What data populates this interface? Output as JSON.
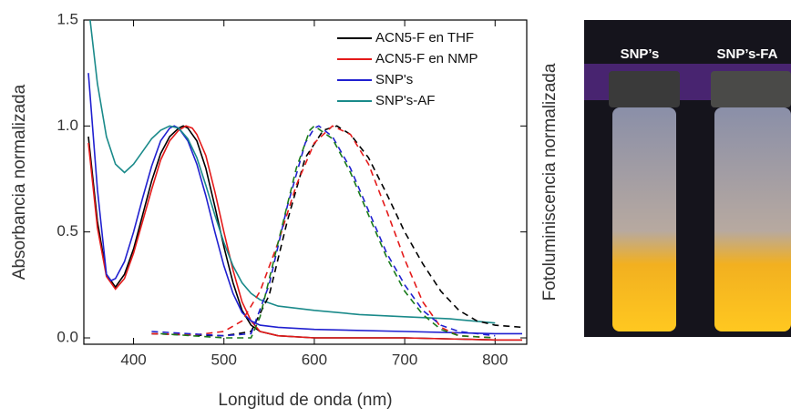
{
  "chart_data": {
    "type": "line",
    "xlabel": "Longitud de onda (nm)",
    "ylabel": "Absorbancia normalizada",
    "y2label": "Fotoluminiscencia normalizada",
    "xlim": [
      345,
      835
    ],
    "xticks": [
      400,
      500,
      600,
      700,
      800
    ],
    "ylim": [
      -0.03,
      1.5
    ],
    "yticks": [
      {
        "value": 0,
        "label": "0.0"
      },
      0.5,
      {
        "value": 1,
        "label": "1.0"
      },
      {
        "value": 1.5,
        "label": "1.5"
      }
    ],
    "legend": "upper right",
    "series": [
      {
        "name": "ACN5-F en THF",
        "color": "#000000",
        "dash": false,
        "x": [
          350,
          360,
          370,
          380,
          390,
          400,
          410,
          420,
          430,
          440,
          450,
          455,
          460,
          470,
          480,
          490,
          500,
          510,
          520,
          530,
          540,
          560,
          600,
          700,
          800,
          830
        ],
        "values": [
          0.95,
          0.55,
          0.3,
          0.24,
          0.3,
          0.42,
          0.58,
          0.74,
          0.87,
          0.95,
          0.99,
          1.0,
          0.99,
          0.93,
          0.8,
          0.62,
          0.43,
          0.26,
          0.13,
          0.06,
          0.03,
          0.01,
          0.0,
          0.0,
          -0.01,
          -0.01
        ]
      },
      {
        "name": "ACN5-F en NMP",
        "color": "#e41a1a",
        "dash": false,
        "x": [
          350,
          360,
          370,
          380,
          390,
          400,
          410,
          420,
          430,
          440,
          450,
          458,
          465,
          470,
          480,
          490,
          500,
          510,
          520,
          530,
          540,
          560,
          600,
          700,
          800,
          830
        ],
        "values": [
          0.92,
          0.52,
          0.29,
          0.23,
          0.28,
          0.4,
          0.55,
          0.7,
          0.84,
          0.93,
          0.98,
          1.0,
          0.99,
          0.96,
          0.86,
          0.69,
          0.5,
          0.32,
          0.17,
          0.08,
          0.03,
          0.01,
          0.0,
          0.0,
          -0.01,
          -0.01
        ]
      },
      {
        "name": "SNP's",
        "color": "#2020d0",
        "dash": false,
        "x": [
          350,
          360,
          370,
          375,
          380,
          390,
          400,
          410,
          420,
          430,
          440,
          445,
          450,
          460,
          470,
          480,
          490,
          500,
          510,
          520,
          530,
          540,
          560,
          600,
          700,
          800,
          830
        ],
        "values": [
          1.25,
          0.7,
          0.3,
          0.27,
          0.28,
          0.36,
          0.5,
          0.66,
          0.81,
          0.93,
          0.99,
          1.0,
          0.99,
          0.93,
          0.82,
          0.67,
          0.5,
          0.34,
          0.21,
          0.12,
          0.08,
          0.06,
          0.05,
          0.04,
          0.03,
          0.02,
          0.02
        ]
      },
      {
        "name": "SNP's-AF",
        "color": "#1a8a8a",
        "dash": false,
        "x": [
          352,
          360,
          370,
          380,
          390,
          400,
          410,
          420,
          430,
          440,
          450,
          460,
          470,
          480,
          490,
          500,
          510,
          520,
          530,
          540,
          560,
          600,
          650,
          700,
          750,
          800
        ],
        "values": [
          1.5,
          1.2,
          0.95,
          0.82,
          0.78,
          0.82,
          0.88,
          0.94,
          0.98,
          1.0,
          0.99,
          0.94,
          0.85,
          0.72,
          0.58,
          0.45,
          0.34,
          0.26,
          0.21,
          0.18,
          0.15,
          0.13,
          0.11,
          0.1,
          0.09,
          0.07
        ]
      },
      {
        "color": "#000000",
        "dash": true,
        "x": [
          420,
          450,
          500,
          530,
          550,
          570,
          590,
          610,
          625,
          640,
          660,
          680,
          700,
          720,
          740,
          760,
          780,
          800,
          830
        ],
        "values": [
          0.02,
          0.015,
          0.01,
          0.03,
          0.2,
          0.55,
          0.85,
          0.98,
          1.0,
          0.96,
          0.85,
          0.68,
          0.5,
          0.35,
          0.22,
          0.13,
          0.08,
          0.06,
          0.05
        ]
      },
      {
        "color": "#e41a1a",
        "dash": true,
        "x": [
          420,
          470,
          500,
          520,
          540,
          560,
          580,
          600,
          620,
          640,
          660,
          680,
          700,
          720,
          740,
          760,
          800
        ],
        "values": [
          0.02,
          0.015,
          0.03,
          0.08,
          0.22,
          0.45,
          0.72,
          0.92,
          1.0,
          0.96,
          0.82,
          0.6,
          0.37,
          0.17,
          0.05,
          0.01,
          0.0
        ]
      },
      {
        "color": "#2020d0",
        "dash": true,
        "x": [
          420,
          500,
          530,
          550,
          570,
          590,
          600,
          605,
          620,
          640,
          660,
          680,
          700,
          720,
          740,
          760,
          800
        ],
        "values": [
          0.03,
          0.01,
          0.02,
          0.25,
          0.62,
          0.92,
          0.99,
          1.0,
          0.95,
          0.8,
          0.6,
          0.4,
          0.25,
          0.13,
          0.06,
          0.03,
          0.01
        ]
      },
      {
        "color": "#1a7a1a",
        "dash": true,
        "x": [
          430,
          500,
          530,
          540,
          560,
          580,
          595,
          600,
          620,
          640,
          660,
          680,
          700,
          720,
          740,
          760,
          800
        ],
        "values": [
          0.02,
          0.0,
          0.0,
          0.1,
          0.45,
          0.8,
          0.98,
          1.0,
          0.94,
          0.78,
          0.58,
          0.38,
          0.22,
          0.11,
          0.04,
          0.01,
          0.0
        ]
      }
    ]
  },
  "photo": {
    "labels": [
      "SNP’s",
      "SNP’s-FA"
    ]
  }
}
